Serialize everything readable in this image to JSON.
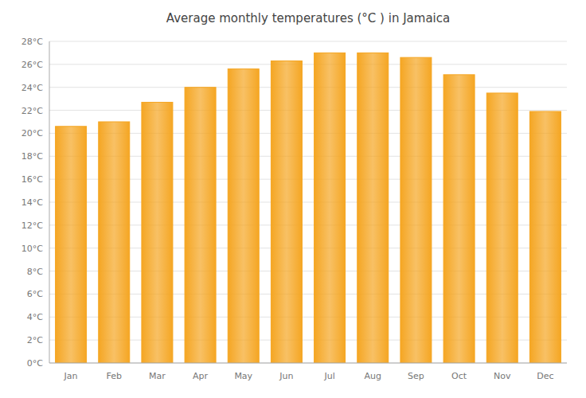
{
  "chart_data": {
    "type": "bar",
    "title": "Average monthly temperatures (°C ) in Jamaica",
    "categories": [
      "Jan",
      "Feb",
      "Mar",
      "Apr",
      "May",
      "Jun",
      "Jul",
      "Aug",
      "Sep",
      "Oct",
      "Nov",
      "Dec"
    ],
    "values": [
      20.6,
      21.0,
      22.7,
      24.0,
      25.6,
      26.3,
      27.0,
      27.0,
      26.6,
      25.1,
      23.5,
      21.9
    ],
    "color": "#F5A623",
    "ylim": [
      0,
      28
    ],
    "yticks": [
      {
        "value": 0,
        "label": "0°C"
      },
      {
        "value": 2,
        "label": "2°C"
      },
      {
        "value": 4,
        "label": "4°C"
      },
      {
        "value": 6,
        "label": "6°C"
      },
      {
        "value": 8,
        "label": "8°C"
      },
      {
        "value": 10,
        "label": "10°C"
      },
      {
        "value": 12,
        "label": "12°C"
      },
      {
        "value": 14,
        "label": "14°C"
      },
      {
        "value": 16,
        "label": "16°C"
      },
      {
        "value": 18,
        "label": "18°C"
      },
      {
        "value": 20,
        "label": "20°C"
      },
      {
        "value": 22,
        "label": "22°C"
      },
      {
        "value": 24,
        "label": "24°C"
      },
      {
        "value": 26,
        "label": "26°C"
      },
      {
        "value": 28,
        "label": "28°C"
      }
    ],
    "grid": true
  }
}
